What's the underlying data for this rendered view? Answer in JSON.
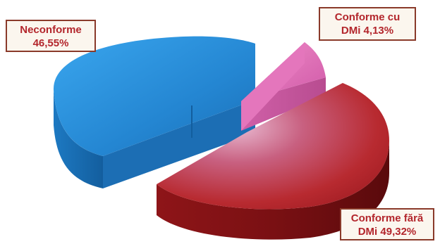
{
  "chart_data": {
    "type": "pie",
    "style": "3d-exploded",
    "slices": [
      {
        "label_line1": "Neconforme",
        "label_line2": "46,55%",
        "value": 46.55,
        "color": "#2e8fd8"
      },
      {
        "label_line1": "Conforme cu",
        "label_line2": "DMi 4,13%",
        "value": 4.13,
        "color": "#e070b8"
      },
      {
        "label_line1": "Conforme fără",
        "label_line2": "DMi 49,32%",
        "value": 49.32,
        "color": "#c0282c"
      }
    ],
    "legend": "none",
    "label_color": "#b3262c"
  }
}
